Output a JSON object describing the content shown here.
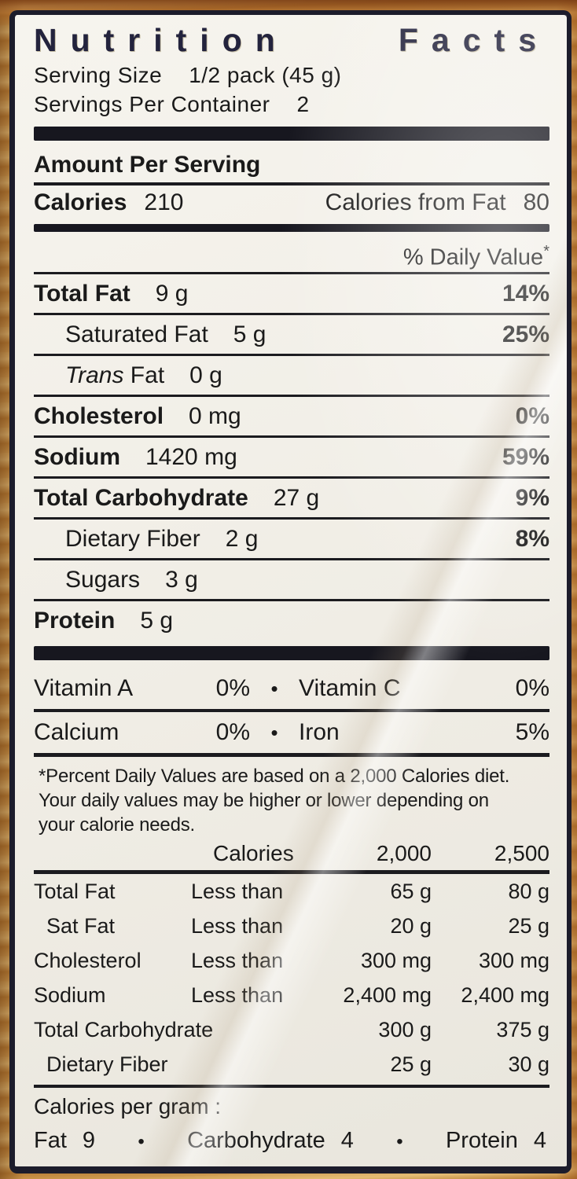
{
  "colors": {
    "package_copper": "#b9742e",
    "package_gold": "#d2a258",
    "label_background": "#f2efe8",
    "ink": "#1a1a1a",
    "title_ink": "#23233d"
  },
  "label": {
    "title_word1": "Nutrition",
    "title_word2": "Facts",
    "serving_size": {
      "label": "Serving Size",
      "value": "1/2 pack (45 g)"
    },
    "servings_per_container": {
      "label": "Servings Per Container",
      "value": "2"
    },
    "amount_per_serving": "Amount Per Serving",
    "calories": {
      "label": "Calories",
      "value": "210",
      "from_fat_label": "Calories from Fat",
      "from_fat_value": "80"
    },
    "daily_value_header": "% Daily Value",
    "daily_value_asterisk": "*",
    "nutrients": [
      {
        "name": "Total Fat",
        "amount": "9 g",
        "dv": "14%",
        "bold": true,
        "indent": false
      },
      {
        "name": "Saturated Fat",
        "amount": "5 g",
        "dv": "25%",
        "bold": false,
        "indent": true
      },
      {
        "name_italic": "Trans",
        "name": "Fat",
        "amount": "0 g",
        "dv": "",
        "bold": false,
        "indent": true
      },
      {
        "name": "Cholesterol",
        "amount": "0 mg",
        "dv": "0%",
        "bold": true,
        "indent": false
      },
      {
        "name": "Sodium",
        "amount": "1420 mg",
        "dv": "59%",
        "bold": true,
        "indent": false
      },
      {
        "name": "Total Carbohydrate",
        "amount": "27 g",
        "dv": "9%",
        "bold": true,
        "indent": false
      },
      {
        "name": "Dietary Fiber",
        "amount": "2 g",
        "dv": "8%",
        "bold": false,
        "indent": true
      },
      {
        "name": "Sugars",
        "amount": "3 g",
        "dv": "",
        "bold": false,
        "indent": true
      },
      {
        "name": "Protein",
        "amount": "5 g",
        "dv": "",
        "bold": true,
        "indent": false
      }
    ],
    "vitamins": [
      {
        "name_left": "Vitamin A",
        "value_left": "0%",
        "bullet": "•",
        "name_right": "Vitamin C",
        "value_right": "0%"
      },
      {
        "name_left": "Calcium",
        "value_left": "0%",
        "bullet": "•",
        "name_right": "Iron",
        "value_right": "5%"
      }
    ],
    "footnote_lines": [
      "*Percent Daily Values are based on a 2,000 Calories diet.",
      "Your daily values may be higher or lower depending on",
      "your calorie needs."
    ],
    "dv_table": {
      "header": {
        "col2": "Calories",
        "col3": "2,000",
        "col4": "2,500"
      },
      "rows": [
        {
          "name": "Total Fat",
          "qualifier": "Less than",
          "v2000": "65 g",
          "v2500": "80 g",
          "indent": false
        },
        {
          "name": "Sat Fat",
          "qualifier": "Less than",
          "v2000": "20 g",
          "v2500": "25 g",
          "indent": true
        },
        {
          "name": "Cholesterol",
          "qualifier": "Less than",
          "v2000": "300 mg",
          "v2500": "300 mg",
          "indent": false
        },
        {
          "name": "Sodium",
          "qualifier": "Less than",
          "v2000": "2,400 mg",
          "v2500": "2,400 mg",
          "indent": false
        },
        {
          "name": "Total Carbohydrate",
          "qualifier": "",
          "v2000": "300 g",
          "v2500": "375 g",
          "indent": false
        },
        {
          "name": "Dietary Fiber",
          "qualifier": "",
          "v2000": "25 g",
          "v2500": "30 g",
          "indent": true
        }
      ]
    },
    "calories_per_gram": {
      "label": "Calories per gram :",
      "bullet": "•",
      "items": [
        {
          "name": "Fat",
          "value": "9"
        },
        {
          "name": "Carbohydrate",
          "value": "4"
        },
        {
          "name": "Protein",
          "value": "4"
        }
      ]
    }
  }
}
